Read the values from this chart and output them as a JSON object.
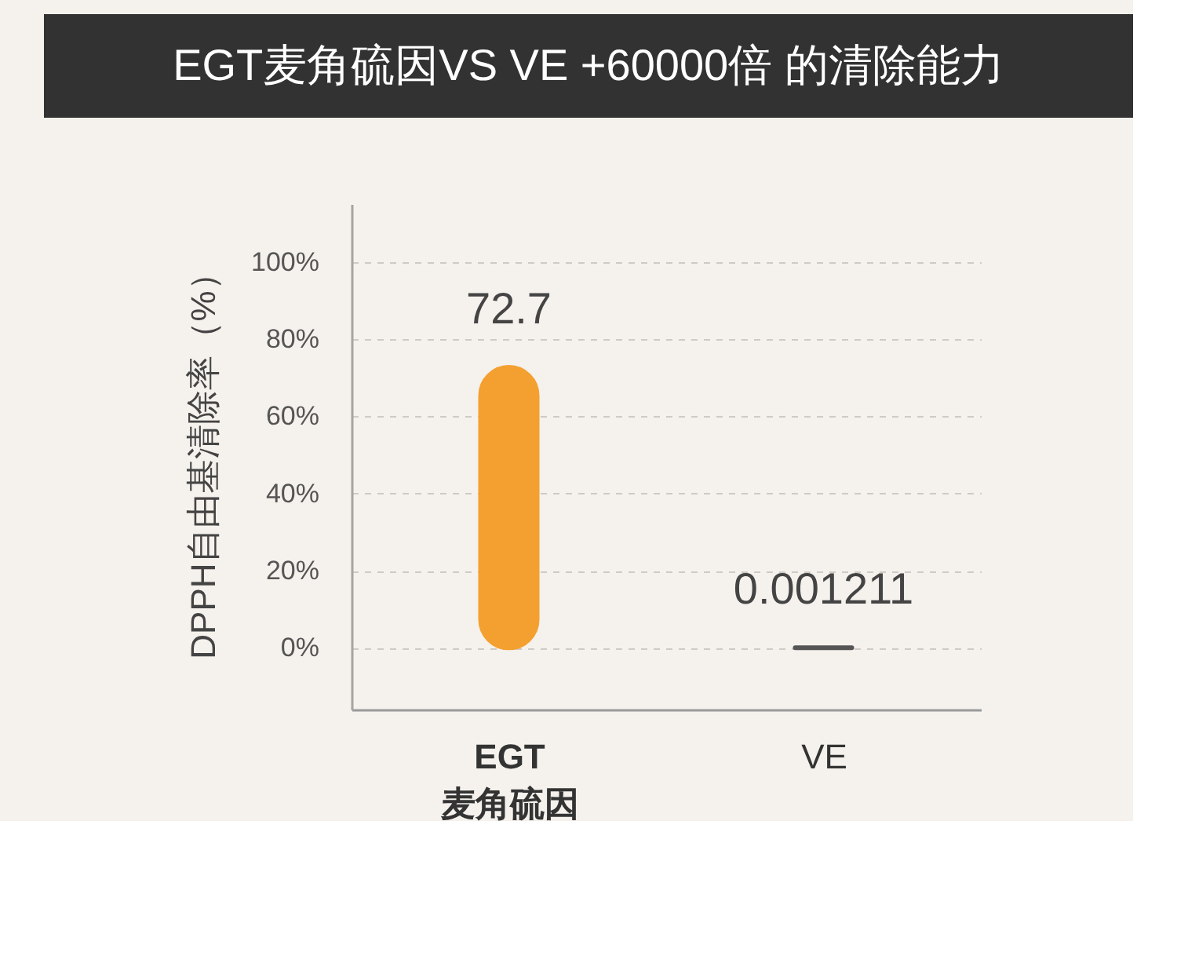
{
  "chart_data": {
    "type": "bar",
    "title": "EGT麦角硫因VS VE +60000倍 的清除能力",
    "ylabel": "DPPH自由基清除率（%）",
    "categories": [
      "EGT\n麦角硫因",
      "VE"
    ],
    "values": [
      72.7,
      0.001211
    ],
    "colors": [
      "#f4a030",
      "#555555"
    ],
    "ylim": [
      -16,
      115
    ],
    "yticks": [
      {
        "value": 0,
        "label": "0%"
      },
      {
        "value": 20,
        "label": "20%"
      },
      {
        "value": 40,
        "label": "40%"
      },
      {
        "value": 60,
        "label": "60%"
      },
      {
        "value": 80,
        "label": "80%"
      },
      {
        "value": 100,
        "label": "100%"
      }
    ],
    "grid": "y",
    "data_labels": true
  }
}
